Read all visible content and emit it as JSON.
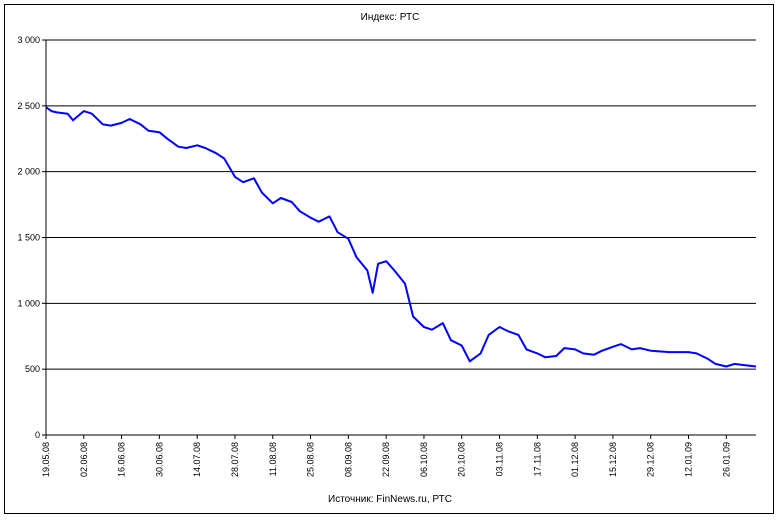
{
  "chart_data": {
    "type": "line",
    "title": "Индекс: РТС",
    "source": "Источник: FinNews.ru, РТС",
    "ylim": [
      0,
      3000
    ],
    "yticks": [
      0,
      500,
      1000,
      1500,
      2000,
      2500,
      3000
    ],
    "ytick_labels": [
      "0",
      "500",
      "1 000",
      "1 500",
      "2 000",
      "2 500",
      "3 000"
    ],
    "xlim": [
      "2008-05-19",
      "2009-02-06"
    ],
    "xtick_labels": [
      "19.05.08",
      "02.06.08",
      "16.06.08",
      "30.06.08",
      "14.07.08",
      "28.07.08",
      "11.08.08",
      "25.08.08",
      "08.09.08",
      "22.09.08",
      "06.10.08",
      "20.10.08",
      "03.11.08",
      "17.11.08",
      "01.12.08",
      "15.12.08",
      "29.12.08",
      "12.01.09",
      "26.01.09"
    ],
    "xtick_dates": [
      "2008-05-19",
      "2008-06-02",
      "2008-06-16",
      "2008-06-30",
      "2008-07-14",
      "2008-07-28",
      "2008-08-11",
      "2008-08-25",
      "2008-09-08",
      "2008-09-22",
      "2008-10-06",
      "2008-10-20",
      "2008-11-03",
      "2008-11-17",
      "2008-12-01",
      "2008-12-15",
      "2008-12-29",
      "2009-01-12",
      "2009-01-26"
    ],
    "grid": "horizontal",
    "line_color": "#0000ff",
    "series": [
      {
        "x": [
          "2008-05-19",
          "2008-05-21",
          "2008-05-23",
          "2008-05-27",
          "2008-05-29",
          "2008-06-02",
          "2008-06-05",
          "2008-06-09",
          "2008-06-12",
          "2008-06-16",
          "2008-06-19",
          "2008-06-23",
          "2008-06-26",
          "2008-06-30",
          "2008-07-03",
          "2008-07-07",
          "2008-07-10",
          "2008-07-14",
          "2008-07-17",
          "2008-07-21",
          "2008-07-24",
          "2008-07-28",
          "2008-07-31",
          "2008-08-04",
          "2008-08-07",
          "2008-08-11",
          "2008-08-14",
          "2008-08-18",
          "2008-08-21",
          "2008-08-25",
          "2008-08-28",
          "2008-09-01",
          "2008-09-04",
          "2008-09-08",
          "2008-09-11",
          "2008-09-15",
          "2008-09-17",
          "2008-09-19",
          "2008-09-22",
          "2008-09-25",
          "2008-09-29",
          "2008-10-02",
          "2008-10-06",
          "2008-10-09",
          "2008-10-13",
          "2008-10-16",
          "2008-10-20",
          "2008-10-23",
          "2008-10-27",
          "2008-10-30",
          "2008-11-03",
          "2008-11-06",
          "2008-11-10",
          "2008-11-13",
          "2008-11-17",
          "2008-11-20",
          "2008-11-24",
          "2008-11-27",
          "2008-12-01",
          "2008-12-04",
          "2008-12-08",
          "2008-12-11",
          "2008-12-15",
          "2008-12-18",
          "2008-12-22",
          "2008-12-25",
          "2008-12-29",
          "2009-01-05",
          "2009-01-12",
          "2009-01-15",
          "2009-01-19",
          "2009-01-22",
          "2009-01-26",
          "2009-01-29",
          "2009-02-02",
          "2009-02-06"
        ],
        "values": [
          2490,
          2460,
          2450,
          2440,
          2390,
          2460,
          2440,
          2360,
          2350,
          2370,
          2400,
          2360,
          2310,
          2300,
          2250,
          2190,
          2180,
          2200,
          2180,
          2140,
          2100,
          1960,
          1920,
          1950,
          1840,
          1760,
          1800,
          1770,
          1700,
          1650,
          1620,
          1660,
          1540,
          1490,
          1350,
          1250,
          1080,
          1300,
          1320,
          1250,
          1150,
          900,
          820,
          800,
          850,
          720,
          680,
          560,
          620,
          760,
          820,
          790,
          760,
          650,
          620,
          590,
          600,
          660,
          650,
          620,
          610,
          640,
          670,
          690,
          650,
          660,
          640,
          630,
          630,
          620,
          580,
          540,
          520,
          540,
          530,
          520
        ]
      }
    ]
  }
}
